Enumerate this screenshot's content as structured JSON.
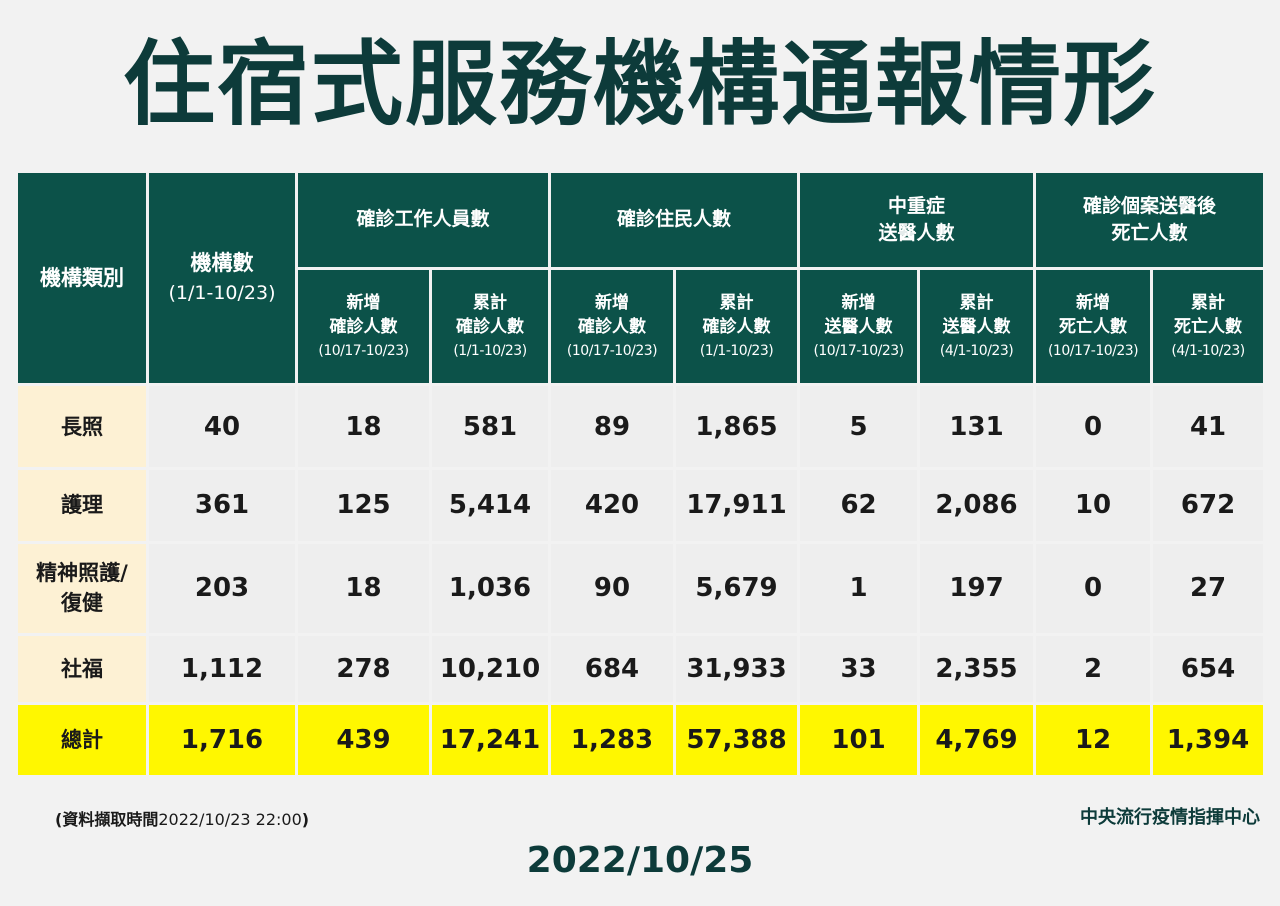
{
  "title": "住宿式服務機構通報情形",
  "table": {
    "header": {
      "category": "機構類別",
      "institutions": "機構數",
      "institutions_range": "(1/1-10/23)",
      "groups": [
        {
          "line1": "確診工作人員數",
          "line2": ""
        },
        {
          "line1": "確診住民人數",
          "line2": ""
        },
        {
          "line1": "中重症",
          "line2": "送醫人數"
        },
        {
          "line1": "確診個案送醫後",
          "line2": "死亡人數"
        }
      ],
      "sub": [
        {
          "l1": "新增",
          "l2": "確診人數",
          "range": "(10/17-10/23)"
        },
        {
          "l1": "累計",
          "l2": "確診人數",
          "range": "(1/1-10/23)"
        },
        {
          "l1": "新增",
          "l2": "確診人數",
          "range": "(10/17-10/23)"
        },
        {
          "l1": "累計",
          "l2": "確診人數",
          "range": "(1/1-10/23)"
        },
        {
          "l1": "新增",
          "l2": "送醫人數",
          "range": "(10/17-10/23)"
        },
        {
          "l1": "累計",
          "l2": "送醫人數",
          "range": "(4/1-10/23)"
        },
        {
          "l1": "新增",
          "l2": "死亡人數",
          "range": "(10/17-10/23)"
        },
        {
          "l1": "累計",
          "l2": "死亡人數",
          "range": "(4/1-10/23)"
        }
      ]
    },
    "rows": [
      {
        "category_l1": "長照",
        "category_l2": "",
        "values": [
          "40",
          "18",
          "581",
          "89",
          "1,865",
          "5",
          "131",
          "0",
          "41"
        ]
      },
      {
        "category_l1": "護理",
        "category_l2": "",
        "values": [
          "361",
          "125",
          "5,414",
          "420",
          "17,911",
          "62",
          "2,086",
          "10",
          "672"
        ]
      },
      {
        "category_l1": "精神照護/",
        "category_l2": "復健",
        "values": [
          "203",
          "18",
          "1,036",
          "90",
          "5,679",
          "1",
          "197",
          "0",
          "27"
        ]
      },
      {
        "category_l1": "社福",
        "category_l2": "",
        "values": [
          "1,112",
          "278",
          "10,210",
          "684",
          "31,933",
          "33",
          "2,355",
          "2",
          "654"
        ]
      }
    ],
    "total": {
      "category": "總計",
      "values": [
        "1,716",
        "439",
        "17,241",
        "1,283",
        "57,388",
        "101",
        "4,769",
        "12",
        "1,394"
      ]
    }
  },
  "footnote": {
    "label": "(資料擷取時間",
    "time": "2022/10/23  22:00",
    "close": ")"
  },
  "organization": "中央流行疫情指揮中心",
  "date": "2022/10/25",
  "colors": {
    "header_bg": "#0c5249",
    "title": "#0d3b3a",
    "category_bg": "#fdf1d4",
    "total_bg": "#fff700",
    "cell_bg": "#eeeeee"
  }
}
